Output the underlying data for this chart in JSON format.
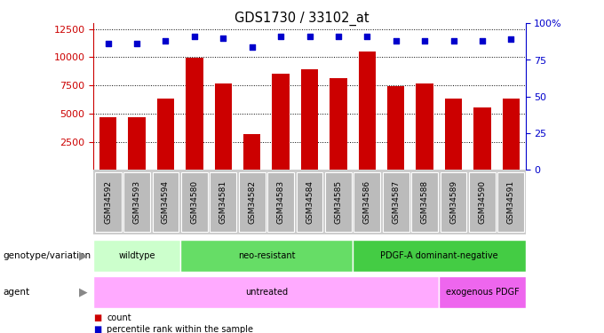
{
  "title": "GDS1730 / 33102_at",
  "samples": [
    "GSM34592",
    "GSM34593",
    "GSM34594",
    "GSM34580",
    "GSM34581",
    "GSM34582",
    "GSM34583",
    "GSM34584",
    "GSM34585",
    "GSM34586",
    "GSM34587",
    "GSM34588",
    "GSM34589",
    "GSM34590",
    "GSM34591"
  ],
  "counts": [
    4700,
    4650,
    6300,
    9950,
    7700,
    3200,
    8500,
    8900,
    8100,
    10500,
    7400,
    7700,
    6300,
    5500,
    6300
  ],
  "percentile_ranks": [
    86,
    86,
    88,
    91,
    90,
    84,
    91,
    91,
    91,
    91,
    88,
    88,
    88,
    88,
    89
  ],
  "ylim_left": [
    0,
    13000
  ],
  "ylim_right": [
    0,
    100
  ],
  "yticks_left": [
    2500,
    5000,
    7500,
    10000,
    12500
  ],
  "yticks_right": [
    0,
    25,
    50,
    75,
    100
  ],
  "bar_color": "#cc0000",
  "dot_color": "#0000cc",
  "genotype_groups": [
    {
      "label": "wildtype",
      "start": 0,
      "end": 3,
      "color": "#ccffcc"
    },
    {
      "label": "neo-resistant",
      "start": 3,
      "end": 9,
      "color": "#66dd66"
    },
    {
      "label": "PDGF-A dominant-negative",
      "start": 9,
      "end": 15,
      "color": "#44cc44"
    }
  ],
  "agent_groups": [
    {
      "label": "untreated",
      "start": 0,
      "end": 12,
      "color": "#ffaaff"
    },
    {
      "label": "exogenous PDGF",
      "start": 12,
      "end": 15,
      "color": "#ee66ee"
    }
  ],
  "genotype_label": "genotype/variation",
  "agent_label": "agent",
  "left_axis_color": "#cc0000",
  "right_axis_color": "#0000cc",
  "xlabel_bg_color": "#cccccc",
  "xlabel_box_color": "#bbbbbb"
}
